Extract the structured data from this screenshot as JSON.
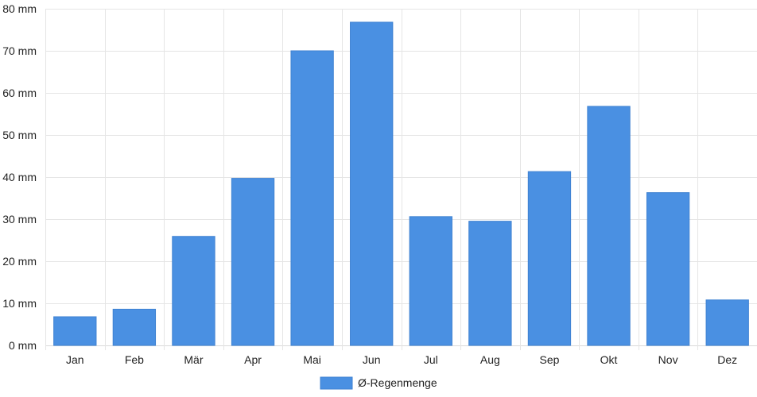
{
  "colors": {
    "bar": "#4a90e2",
    "bar_border": "#3f82d2",
    "grid": "#e5e5e5",
    "text": "#222222"
  },
  "chart_data": {
    "type": "bar",
    "categories": [
      "Jan",
      "Feb",
      "Mär",
      "Apr",
      "Mai",
      "Jun",
      "Jul",
      "Aug",
      "Sep",
      "Okt",
      "Nov",
      "Dez"
    ],
    "series": [
      {
        "name": "Ø-Regenmenge",
        "values": [
          6.8,
          8.6,
          25.9,
          39.7,
          70.0,
          76.8,
          30.6,
          29.5,
          41.3,
          56.8,
          36.3,
          10.8
        ]
      }
    ],
    "y_unit": "mm",
    "ylim": [
      0,
      80
    ],
    "y_ticks": [
      0,
      10,
      20,
      30,
      40,
      50,
      60,
      70,
      80
    ],
    "y_tick_labels": [
      "0 mm",
      "10 mm",
      "20 mm",
      "30 mm",
      "40 mm",
      "50 mm",
      "60 mm",
      "70 mm",
      "80 mm"
    ],
    "grid": true,
    "legend_position": "bottom"
  }
}
